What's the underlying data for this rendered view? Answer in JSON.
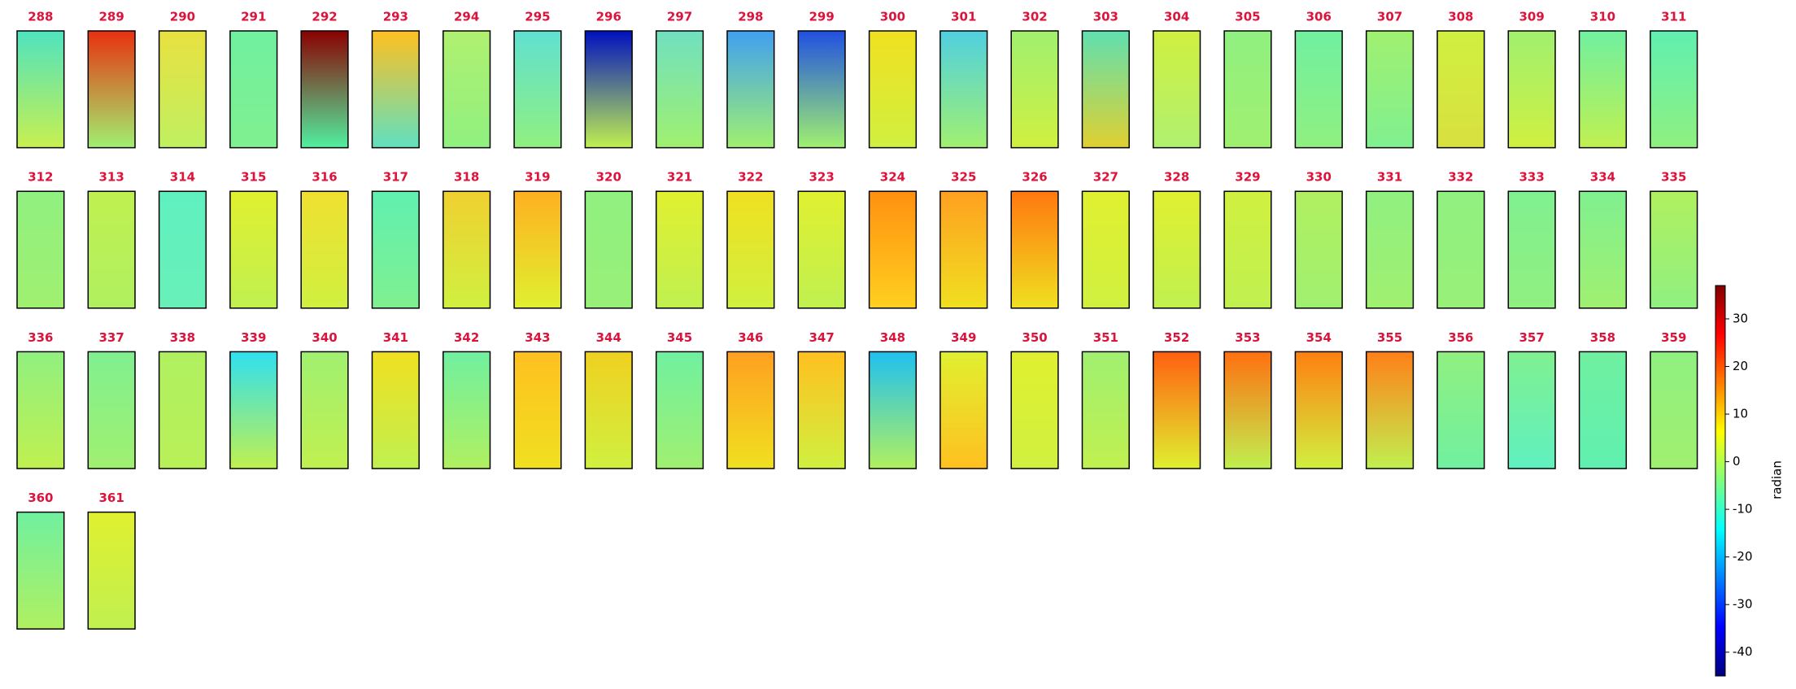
{
  "chart_data": {
    "type": "image_grid",
    "panels": [
      {
        "title": "288",
        "colors": [
          "#4fe3c0",
          "#c8f050"
        ]
      },
      {
        "title": "289",
        "colors": [
          "#e83010",
          "#a0f070"
        ]
      },
      {
        "title": "290",
        "colors": [
          "#e8e040",
          "#c0f060"
        ]
      },
      {
        "title": "291",
        "colors": [
          "#70f0a0",
          "#80f090"
        ]
      },
      {
        "title": "292",
        "colors": [
          "#8b0000",
          "#50f0a0"
        ]
      },
      {
        "title": "293",
        "colors": [
          "#ffc020",
          "#60e0c0"
        ]
      },
      {
        "title": "294",
        "colors": [
          "#b0f070",
          "#90f080"
        ]
      },
      {
        "title": "295",
        "colors": [
          "#60e0d0",
          "#90f080"
        ]
      },
      {
        "title": "296",
        "colors": [
          "#0010c0",
          "#c0f050"
        ]
      },
      {
        "title": "297",
        "colors": [
          "#70e0c0",
          "#a0f070"
        ]
      },
      {
        "title": "298",
        "colors": [
          "#40a0f0",
          "#a0f070"
        ]
      },
      {
        "title": "299",
        "colors": [
          "#2050e0",
          "#a0f070"
        ]
      },
      {
        "title": "300",
        "colors": [
          "#f0e020",
          "#d0f040"
        ]
      },
      {
        "title": "301",
        "colors": [
          "#50d0e0",
          "#a0f070"
        ]
      },
      {
        "title": "302",
        "colors": [
          "#a0f070",
          "#d0f040"
        ]
      },
      {
        "title": "303",
        "colors": [
          "#60e0b0",
          "#e0d030"
        ]
      },
      {
        "title": "304",
        "colors": [
          "#d0f040",
          "#b0f070"
        ]
      },
      {
        "title": "305",
        "colors": [
          "#90f080",
          "#a0f070"
        ]
      },
      {
        "title": "306",
        "colors": [
          "#70f0a0",
          "#90f080"
        ]
      },
      {
        "title": "307",
        "colors": [
          "#a0f070",
          "#80f090"
        ]
      },
      {
        "title": "308",
        "colors": [
          "#d0f040",
          "#d8e040"
        ]
      },
      {
        "title": "309",
        "colors": [
          "#a0f070",
          "#d0f040"
        ]
      },
      {
        "title": "310",
        "colors": [
          "#70f0a0",
          "#c0f050"
        ]
      },
      {
        "title": "311",
        "colors": [
          "#60f0b0",
          "#90f080"
        ]
      },
      {
        "title": "312",
        "colors": [
          "#90f080",
          "#a0f070"
        ]
      },
      {
        "title": "313",
        "colors": [
          "#c0f050",
          "#b0f060"
        ]
      },
      {
        "title": "314",
        "colors": [
          "#60f0c0",
          "#68f0b8"
        ]
      },
      {
        "title": "315",
        "colors": [
          "#e0f030",
          "#c0f050"
        ]
      },
      {
        "title": "316",
        "colors": [
          "#f0e030",
          "#d0f040"
        ]
      },
      {
        "title": "317",
        "colors": [
          "#60f0b0",
          "#80f090"
        ]
      },
      {
        "title": "318",
        "colors": [
          "#f0d030",
          "#d0f040"
        ]
      },
      {
        "title": "319",
        "colors": [
          "#ffb020",
          "#e0f030"
        ]
      },
      {
        "title": "320",
        "colors": [
          "#90f080",
          "#98f078"
        ]
      },
      {
        "title": "321",
        "colors": [
          "#e0f030",
          "#c0f050"
        ]
      },
      {
        "title": "322",
        "colors": [
          "#f0e020",
          "#d0f040"
        ]
      },
      {
        "title": "323",
        "colors": [
          "#e0f030",
          "#c0f050"
        ]
      },
      {
        "title": "324",
        "colors": [
          "#ff9010",
          "#ffd020"
        ]
      },
      {
        "title": "325",
        "colors": [
          "#ffa020",
          "#f0e020"
        ]
      },
      {
        "title": "326",
        "colors": [
          "#ff7810",
          "#f0e020"
        ]
      },
      {
        "title": "327",
        "colors": [
          "#e0f030",
          "#d0f040"
        ]
      },
      {
        "title": "328",
        "colors": [
          "#e0f030",
          "#c0f050"
        ]
      },
      {
        "title": "329",
        "colors": [
          "#d0f040",
          "#c0f050"
        ]
      },
      {
        "title": "330",
        "colors": [
          "#b0f060",
          "#a0f070"
        ]
      },
      {
        "title": "331",
        "colors": [
          "#90f080",
          "#a0f070"
        ]
      },
      {
        "title": "332",
        "colors": [
          "#90f080",
          "#98f078"
        ]
      },
      {
        "title": "333",
        "colors": [
          "#80f090",
          "#90f080"
        ]
      },
      {
        "title": "334",
        "colors": [
          "#80f090",
          "#a0f070"
        ]
      },
      {
        "title": "335",
        "colors": [
          "#b0f060",
          "#90f080"
        ]
      },
      {
        "title": "336",
        "colors": [
          "#90f080",
          "#c0f050"
        ]
      },
      {
        "title": "337",
        "colors": [
          "#80f090",
          "#a0f070"
        ]
      },
      {
        "title": "338",
        "colors": [
          "#b0f060",
          "#b8f058"
        ]
      },
      {
        "title": "339",
        "colors": [
          "#30e0f0",
          "#c0f050"
        ]
      },
      {
        "title": "340",
        "colors": [
          "#a0f070",
          "#c0f050"
        ]
      },
      {
        "title": "341",
        "colors": [
          "#f0e020",
          "#c0f050"
        ]
      },
      {
        "title": "342",
        "colors": [
          "#70f0a0",
          "#b0f060"
        ]
      },
      {
        "title": "343",
        "colors": [
          "#ffc020",
          "#f0e020"
        ]
      },
      {
        "title": "344",
        "colors": [
          "#f0d020",
          "#d0f040"
        ]
      },
      {
        "title": "345",
        "colors": [
          "#70f0a0",
          "#a0f070"
        ]
      },
      {
        "title": "346",
        "colors": [
          "#ffa020",
          "#f0e020"
        ]
      },
      {
        "title": "347",
        "colors": [
          "#ffc020",
          "#d0f040"
        ]
      },
      {
        "title": "348",
        "colors": [
          "#20c0f0",
          "#b0f060"
        ]
      },
      {
        "title": "349",
        "colors": [
          "#e0f030",
          "#ffc020"
        ]
      },
      {
        "title": "350",
        "colors": [
          "#e0f030",
          "#d0f040"
        ]
      },
      {
        "title": "351",
        "colors": [
          "#a0f070",
          "#c0f050"
        ]
      },
      {
        "title": "352",
        "colors": [
          "#ff6010",
          "#e0f030"
        ]
      },
      {
        "title": "353",
        "colors": [
          "#ff7010",
          "#c0f050"
        ]
      },
      {
        "title": "354",
        "colors": [
          "#ff8010",
          "#d0f040"
        ]
      },
      {
        "title": "355",
        "colors": [
          "#ff8018",
          "#c0f050"
        ]
      },
      {
        "title": "356",
        "colors": [
          "#90f080",
          "#70f0a0"
        ]
      },
      {
        "title": "357",
        "colors": [
          "#80f090",
          "#60f0c0"
        ]
      },
      {
        "title": "358",
        "colors": [
          "#70f0a0",
          "#60f0b0"
        ]
      },
      {
        "title": "359",
        "colors": [
          "#90f080",
          "#a0f070"
        ]
      },
      {
        "title": "360",
        "colors": [
          "#70f0a0",
          "#b0f060"
        ]
      },
      {
        "title": "361",
        "colors": [
          "#e0f030",
          "#c0f050"
        ]
      }
    ],
    "colorbar": {
      "label": "radian",
      "clim": [
        -45,
        37
      ],
      "ticks": [
        30,
        20,
        10,
        0,
        -10,
        -20,
        -30,
        -40
      ],
      "colormap": [
        "#00007f",
        "#0000ff",
        "#007fff",
        "#00ffff",
        "#7fff7f",
        "#ffff00",
        "#ff7f00",
        "#ff0000",
        "#7f0000"
      ]
    }
  }
}
